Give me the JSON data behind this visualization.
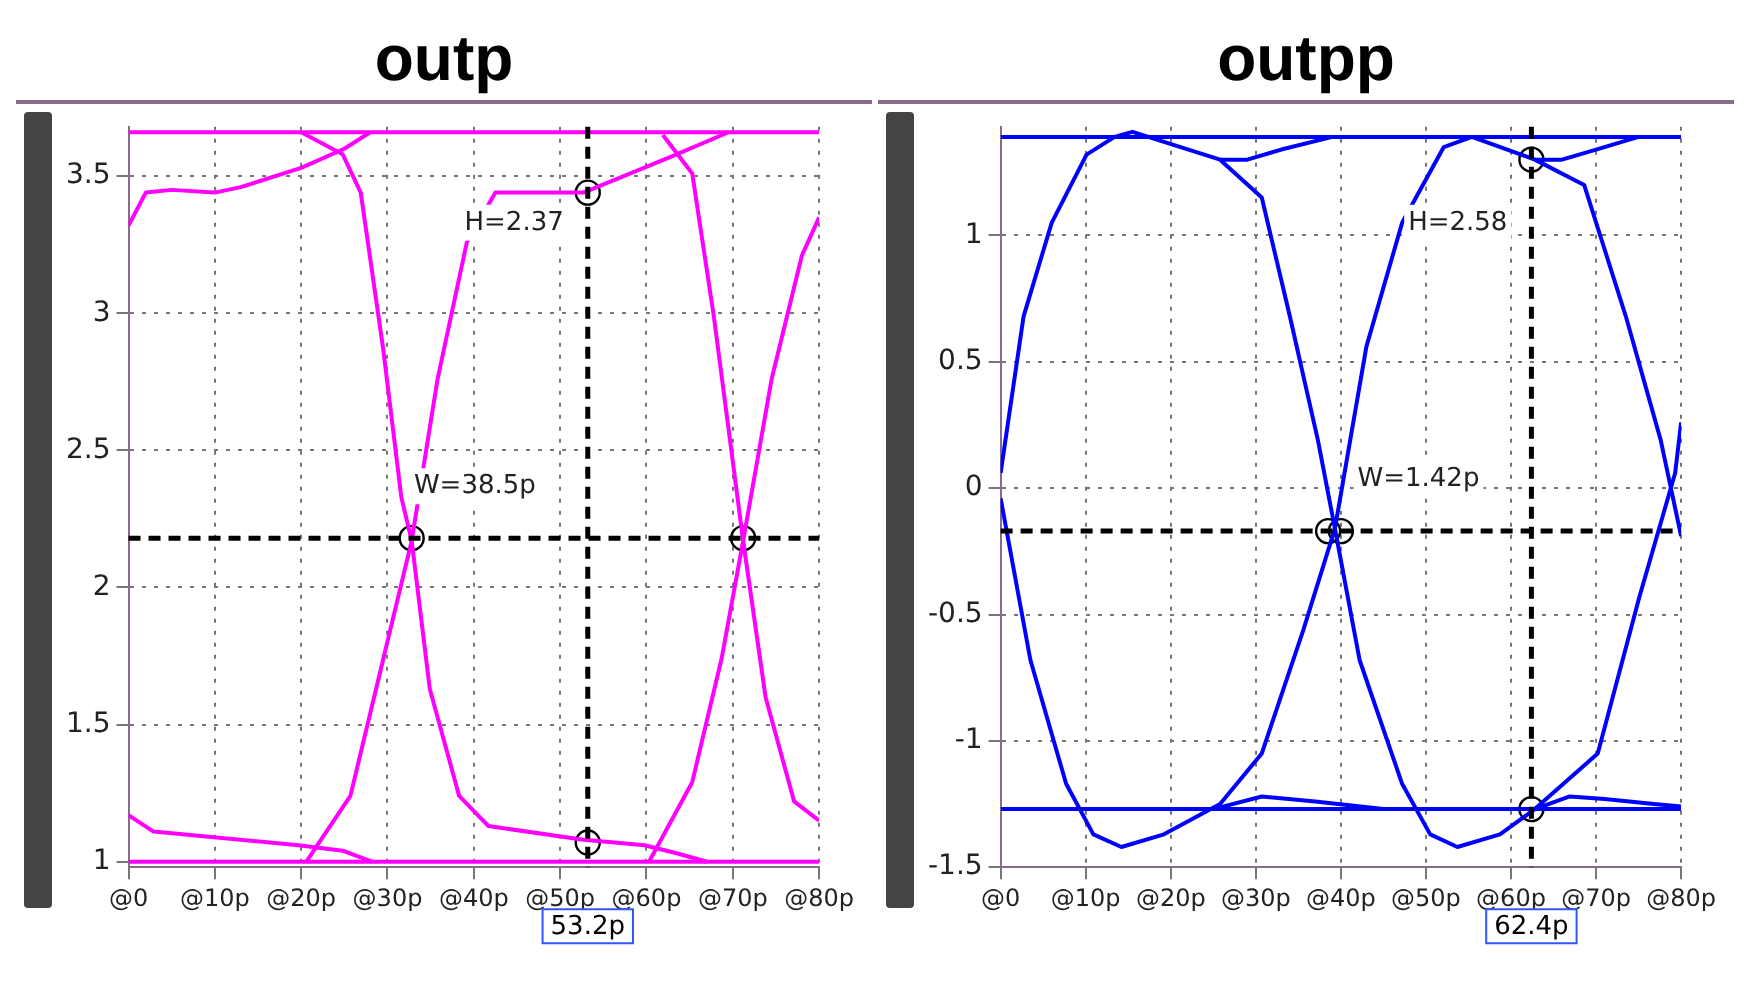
{
  "chart_data": [
    {
      "type": "line",
      "title": "outp",
      "xlim": [
        0,
        80
      ],
      "ylim": [
        0.98,
        3.68
      ],
      "xticks": [
        {
          "value": 0,
          "label": "@0"
        },
        {
          "value": 10,
          "label": "@10p"
        },
        {
          "value": 20,
          "label": "@20p"
        },
        {
          "value": 30,
          "label": "@30p"
        },
        {
          "value": 40,
          "label": "@40p"
        },
        {
          "value": 50,
          "label": "@50p"
        },
        {
          "value": 60,
          "label": "@60p"
        },
        {
          "value": 70,
          "label": "@70p"
        },
        {
          "value": 80,
          "label": "@80p"
        }
      ],
      "yticks": [
        1,
        1.5,
        2,
        2.5,
        3,
        3.5
      ],
      "grid": true,
      "line_style": "solid",
      "series": [
        {
          "color": "#ff00ff",
          "x": [
            0,
            80
          ],
          "values": [
            3.66,
            3.66
          ]
        },
        {
          "color": "#ff00ff",
          "x": [
            0,
            80
          ],
          "values": [
            1.0,
            1.0
          ]
        },
        {
          "color": "#ff00ff",
          "x": [
            0,
            2,
            5,
            10,
            13,
            20,
            25,
            28
          ],
          "values": [
            3.32,
            3.44,
            3.45,
            3.44,
            3.46,
            3.53,
            3.6,
            3.66
          ]
        },
        {
          "color": "#ff00ff",
          "x": [
            20,
            24.8,
            26.9,
            29.5,
            31.6,
            32.8,
            34.9,
            38.3,
            41.7,
            52.7,
            59.8,
            63.6,
            67
          ],
          "values": [
            3.66,
            3.58,
            3.44,
            2.87,
            2.33,
            2.17,
            1.63,
            1.24,
            1.13,
            1.08,
            1.06,
            1.03,
            1.0
          ]
        },
        {
          "color": "#ff00ff",
          "x": [
            20.6,
            25.7,
            29.9,
            32.8,
            35.8,
            39.2,
            42.5,
            52.7,
            62.8,
            69.5
          ],
          "values": [
            1.0,
            1.24,
            1.79,
            2.17,
            2.76,
            3.26,
            3.44,
            3.44,
            3.57,
            3.66
          ]
        },
        {
          "color": "#ff00ff",
          "x": [
            61.9,
            65.3,
            67.8,
            71.2,
            73.8,
            77.1,
            80
          ],
          "values": [
            3.65,
            3.51,
            2.99,
            2.17,
            1.6,
            1.22,
            1.15
          ]
        },
        {
          "color": "#ff00ff",
          "x": [
            60.3,
            65.3,
            68.7,
            71.2,
            74.5,
            78,
            80
          ],
          "values": [
            1.0,
            1.29,
            1.74,
            2.17,
            2.76,
            3.21,
            3.35
          ]
        },
        {
          "color": "#ff00ff",
          "x": [
            0,
            2.9,
            19.7,
            24.8,
            28.2
          ],
          "values": [
            1.17,
            1.11,
            1.06,
            1.04,
            1.0
          ]
        },
        {
          "type": "scatter",
          "marker": "circle",
          "color": "#000000",
          "x": [
            32.8,
            71.2,
            53.2,
            53.2
          ],
          "values": [
            2.18,
            2.18,
            3.44,
            1.07
          ]
        }
      ],
      "ref_lines": [
        {
          "axis": "x",
          "value": 53.2,
          "label": "53.2p",
          "color": "#000000",
          "line_style": "dashed"
        },
        {
          "axis": "y",
          "value": 2.18,
          "color": "#000000",
          "line_style": "dashed"
        }
      ],
      "annotations": [
        "H=2.37",
        "W=38.5p"
      ]
    },
    {
      "type": "line",
      "title": "outpp",
      "xlim": [
        0,
        80
      ],
      "ylim": [
        -1.5,
        1.43
      ],
      "xticks": [
        {
          "value": 0,
          "label": "@0"
        },
        {
          "value": 10,
          "label": "@10p"
        },
        {
          "value": 20,
          "label": "@20p"
        },
        {
          "value": 30,
          "label": "@30p"
        },
        {
          "value": 40,
          "label": "@40p"
        },
        {
          "value": 50,
          "label": "@50p"
        },
        {
          "value": 60,
          "label": "@60p"
        },
        {
          "value": 70,
          "label": "@70p"
        },
        {
          "value": 80,
          "label": "@80p"
        }
      ],
      "yticks": [
        -1.5,
        -1,
        -0.5,
        0,
        0.5,
        1
      ],
      "grid": true,
      "line_style": "solid",
      "series": [
        {
          "color": "#0000ff",
          "x": [
            0,
            80
          ],
          "values": [
            1.39,
            1.39
          ]
        },
        {
          "color": "#0000ff",
          "x": [
            0,
            80
          ],
          "values": [
            -1.27,
            -1.27
          ]
        },
        {
          "color": "#0000ff",
          "x": [
            0,
            2.7,
            6,
            10.1,
            13.4,
            15.5,
            19.2,
            25.8,
            30.7,
            34,
            37.3,
            39.3,
            42.2,
            47.2,
            50.5,
            53.7,
            58.7,
            62.8,
            66.9,
            71,
            76.8,
            80
          ],
          "values": [
            0.06,
            0.68,
            1.05,
            1.32,
            1.39,
            1.41,
            1.37,
            1.3,
            1.15,
            0.68,
            0.19,
            -0.16,
            -0.68,
            -1.17,
            -1.37,
            -1.42,
            -1.37,
            -1.27,
            -1.22,
            -1.23,
            -1.25,
            -1.26
          ]
        },
        {
          "color": "#0000ff",
          "x": [
            0,
            3.5,
            7.7,
            10.9,
            14.2,
            19.2,
            25.8,
            30.7,
            35.6,
            39.3,
            43,
            47.2,
            52.1,
            55.4,
            62.8,
            68.6,
            73.5,
            77.6,
            80
          ],
          "values": [
            -0.04,
            -0.68,
            -1.17,
            -1.37,
            -1.42,
            -1.37,
            -1.25,
            -1.05,
            -0.56,
            -0.16,
            0.56,
            1.05,
            1.35,
            1.39,
            1.3,
            1.2,
            0.68,
            0.19,
            -0.19
          ]
        },
        {
          "color": "#0000ff",
          "x": [
            62.8,
            70.2,
            75.1,
            79.3,
            80
          ],
          "values": [
            -1.27,
            -1.05,
            -0.43,
            0.06,
            0.26
          ]
        },
        {
          "color": "#0000ff",
          "x": [
            25.8,
            29,
            33,
            39
          ],
          "values": [
            1.3,
            1.3,
            1.34,
            1.39
          ]
        },
        {
          "color": "#0000ff",
          "x": [
            62.8,
            66,
            70,
            75
          ],
          "values": [
            1.3,
            1.3,
            1.34,
            1.39
          ]
        },
        {
          "color": "#0000ff",
          "x": [
            25,
            30.7,
            37,
            45
          ],
          "values": [
            -1.27,
            -1.22,
            -1.24,
            -1.27
          ]
        },
        {
          "type": "scatter",
          "marker": "circle",
          "color": "#000000",
          "x": [
            38.5,
            40,
            62.4,
            62.4
          ],
          "values": [
            -0.17,
            -0.17,
            1.3,
            -1.27
          ]
        }
      ],
      "ref_lines": [
        {
          "axis": "x",
          "value": 62.4,
          "label": "62.4p",
          "color": "#000000",
          "line_style": "dashed"
        },
        {
          "axis": "y",
          "value": -0.17,
          "color": "#000000",
          "line_style": "dashed"
        }
      ],
      "annotations": [
        "H=2.58",
        "W=1.42p"
      ]
    }
  ]
}
